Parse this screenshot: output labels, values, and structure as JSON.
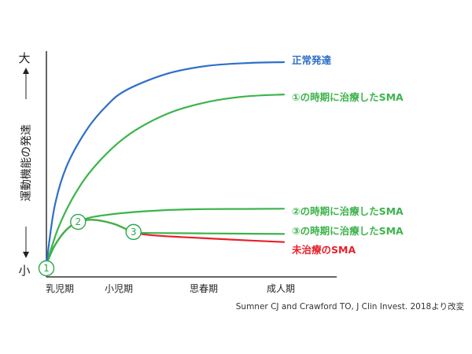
{
  "chart_data": {
    "type": "line",
    "title": "",
    "ylabel": "運動機能の発達",
    "y_top_label": "大",
    "y_bottom_label": "小",
    "xlabel": "",
    "categories": [
      "乳児期",
      "小児期",
      "思春期",
      "成人期"
    ],
    "x_domain": [
      0,
      3
    ],
    "y_domain": [
      0,
      100
    ],
    "series": [
      {
        "name": "正常発達",
        "color": "#2f6fc9",
        "points": [
          [
            0,
            0
          ],
          [
            0.1,
            28
          ],
          [
            0.25,
            48
          ],
          [
            0.5,
            66
          ],
          [
            0.75,
            78
          ],
          [
            1,
            86
          ],
          [
            1.5,
            94
          ],
          [
            2,
            98
          ],
          [
            2.5,
            99.5
          ],
          [
            3,
            100
          ]
        ]
      },
      {
        "name": "①の時期に治療したSMA",
        "color": "#3cb44b",
        "points": [
          [
            0,
            0
          ],
          [
            0.15,
            18
          ],
          [
            0.35,
            34
          ],
          [
            0.6,
            48
          ],
          [
            1,
            63
          ],
          [
            1.5,
            74
          ],
          [
            2,
            80
          ],
          [
            2.5,
            83
          ],
          [
            3,
            84
          ]
        ]
      },
      {
        "name": "②の時期に治療したSMA",
        "color": "#3cb44b",
        "points": [
          [
            0,
            0
          ],
          [
            0.1,
            9
          ],
          [
            0.25,
            17
          ],
          [
            0.4,
            21
          ],
          [
            0.6,
            23.5
          ],
          [
            1,
            25.5
          ],
          [
            1.5,
            26.8
          ],
          [
            2,
            27.3
          ],
          [
            2.5,
            27.4
          ],
          [
            3,
            27.5
          ]
        ]
      },
      {
        "name": "③の時期に治療したSMA",
        "color": "#3cb44b",
        "points": [
          [
            0,
            0
          ],
          [
            0.1,
            9
          ],
          [
            0.25,
            17
          ],
          [
            0.4,
            21
          ],
          [
            0.6,
            22
          ],
          [
            0.85,
            20
          ],
          [
            1.1,
            16
          ],
          [
            1.3,
            15.5
          ],
          [
            2,
            15.3
          ],
          [
            3,
            15
          ]
        ]
      },
      {
        "name": "未治療のSMA",
        "color": "#e8202a",
        "points": [
          [
            0,
            0
          ],
          [
            0.1,
            9
          ],
          [
            0.25,
            17
          ],
          [
            0.4,
            21
          ],
          [
            0.6,
            22
          ],
          [
            0.85,
            20
          ],
          [
            1.1,
            16
          ],
          [
            1.3,
            14.5
          ],
          [
            1.7,
            13.5
          ],
          [
            2.3,
            12.3
          ],
          [
            3,
            11
          ]
        ]
      }
    ],
    "markers": [
      {
        "label": "1",
        "x": 0,
        "y": 0
      },
      {
        "label": "2",
        "x": 0.4,
        "y": 21
      },
      {
        "label": "3",
        "x": 1.1,
        "y": 16
      }
    ],
    "legend_placement": "right-end labels",
    "grid": false
  },
  "source": "Sumner CJ and Crawford TO, J Clin Invest. 2018より改変"
}
